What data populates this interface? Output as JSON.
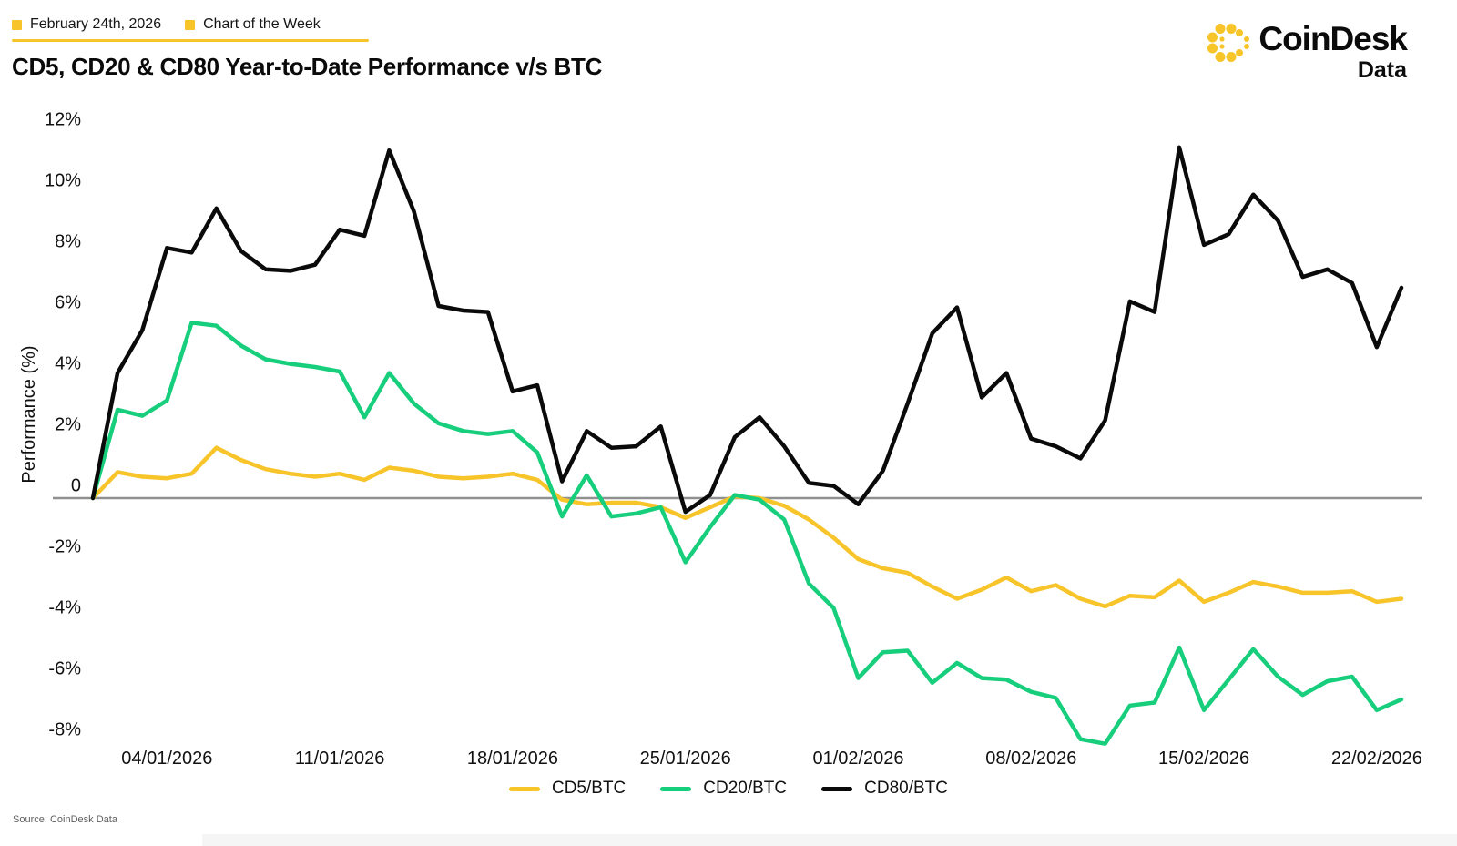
{
  "header": {
    "date": "February 24th, 2026",
    "tag": "Chart of the Week",
    "bullet_icon": "yellow-square-bullet-icon"
  },
  "title": "CD5, CD20 & CD80 Year-to-Date Performance v/s BTC",
  "logo": {
    "icon": "coindesk-dots-c-icon",
    "name": "CoinDesk",
    "sub": "Data"
  },
  "source": "Source: CoinDesk Data",
  "colors": {
    "brand_yellow": "#F7C429",
    "cd5": "#F7C429",
    "cd20": "#17CE7C",
    "cd80": "#0A0A0A",
    "zero_line": "#909090",
    "text": "#111111",
    "source_text": "#5f5f5f"
  },
  "chart_data": {
    "type": "line",
    "title": "CD5, CD20 & CD80 Year-to-Date Performance v/s BTC",
    "xlabel": "",
    "ylabel": "Performance (%)",
    "ylim": [
      -8.5,
      12.5
    ],
    "grid": "zero-line-only",
    "legend_position": "bottom",
    "yticks": {
      "values": [
        12,
        10,
        8,
        6,
        4,
        2,
        0,
        -2,
        -4,
        -6,
        -8
      ],
      "labels": [
        "12%",
        "10%",
        "8%",
        "6%",
        "4%",
        "2%",
        "0",
        "-2%",
        "-4%",
        "-6%",
        "-8%"
      ]
    },
    "x_dates": [
      "01/01/2026",
      "02/01/2026",
      "03/01/2026",
      "04/01/2026",
      "05/01/2026",
      "06/01/2026",
      "07/01/2026",
      "08/01/2026",
      "09/01/2026",
      "10/01/2026",
      "11/01/2026",
      "12/01/2026",
      "13/01/2026",
      "14/01/2026",
      "15/01/2026",
      "16/01/2026",
      "17/01/2026",
      "18/01/2026",
      "19/01/2026",
      "20/01/2026",
      "21/01/2026",
      "22/01/2026",
      "23/01/2026",
      "24/01/2026",
      "25/01/2026",
      "26/01/2026",
      "27/01/2026",
      "28/01/2026",
      "29/01/2026",
      "30/01/2026",
      "31/01/2026",
      "01/02/2026",
      "02/02/2026",
      "03/02/2026",
      "04/02/2026",
      "05/02/2026",
      "06/02/2026",
      "07/02/2026",
      "08/02/2026",
      "09/02/2026",
      "10/02/2026",
      "11/02/2026",
      "12/02/2026",
      "13/02/2026",
      "14/02/2026",
      "15/02/2026",
      "16/02/2026",
      "17/02/2026",
      "18/02/2026",
      "19/02/2026",
      "20/02/2026",
      "21/02/2026",
      "22/02/2026",
      "23/02/2026"
    ],
    "xticks": {
      "indices": [
        3,
        10,
        17,
        24,
        31,
        38,
        45,
        52
      ],
      "labels": [
        "04/01/2026",
        "11/01/2026",
        "18/01/2026",
        "25/01/2026",
        "01/02/2026",
        "08/02/2026",
        "15/02/2026",
        "22/02/2026"
      ]
    },
    "series": [
      {
        "name": "CD5/BTC",
        "color": "cd5",
        "values": [
          0,
          0.85,
          0.7,
          0.65,
          0.8,
          1.65,
          1.25,
          0.95,
          0.8,
          0.7,
          0.8,
          0.6,
          1.0,
          0.9,
          0.7,
          0.65,
          0.7,
          0.8,
          0.6,
          -0.05,
          -0.2,
          -0.15,
          -0.15,
          -0.3,
          -0.65,
          -0.3,
          0.05,
          0.0,
          -0.25,
          -0.7,
          -1.3,
          -2.0,
          -2.3,
          -2.45,
          -2.9,
          -3.3,
          -3.0,
          -2.6,
          -3.05,
          -2.85,
          -3.3,
          -3.55,
          -3.2,
          -3.25,
          -2.7,
          -3.4,
          -3.1,
          -2.75,
          -2.9,
          -3.1,
          -3.1,
          -3.05,
          -3.4,
          -3.3
        ]
      },
      {
        "name": "CD20/BTC",
        "color": "cd20",
        "values": [
          0,
          2.9,
          2.7,
          3.2,
          5.75,
          5.65,
          5.0,
          4.55,
          4.4,
          4.3,
          4.15,
          2.65,
          4.1,
          3.1,
          2.45,
          2.2,
          2.1,
          2.2,
          1.5,
          -0.6,
          0.75,
          -0.6,
          -0.5,
          -0.3,
          -2.1,
          -0.95,
          0.1,
          -0.05,
          -0.7,
          -2.8,
          -3.6,
          -5.9,
          -5.05,
          -5.0,
          -6.05,
          -5.4,
          -5.9,
          -5.95,
          -6.35,
          -6.55,
          -7.9,
          -8.05,
          -6.8,
          -6.7,
          -4.9,
          -6.95,
          -5.95,
          -4.95,
          -5.85,
          -6.45,
          -6.0,
          -5.85,
          -6.95,
          -6.6
        ]
      },
      {
        "name": "CD80/BTC",
        "color": "cd80",
        "values": [
          0,
          4.1,
          5.5,
          8.2,
          8.05,
          9.5,
          8.1,
          7.5,
          7.45,
          7.65,
          8.8,
          8.6,
          11.4,
          9.4,
          6.3,
          6.15,
          6.1,
          3.5,
          3.7,
          0.55,
          2.2,
          1.65,
          1.7,
          2.35,
          -0.45,
          0.1,
          2.0,
          2.65,
          1.7,
          0.5,
          0.4,
          -0.2,
          0.9,
          3.1,
          5.4,
          6.25,
          3.3,
          4.1,
          1.95,
          1.7,
          1.3,
          2.55,
          6.45,
          6.1,
          11.5,
          8.3,
          8.65,
          9.95,
          9.1,
          7.25,
          7.5,
          7.05,
          4.95,
          6.9
        ]
      }
    ]
  }
}
